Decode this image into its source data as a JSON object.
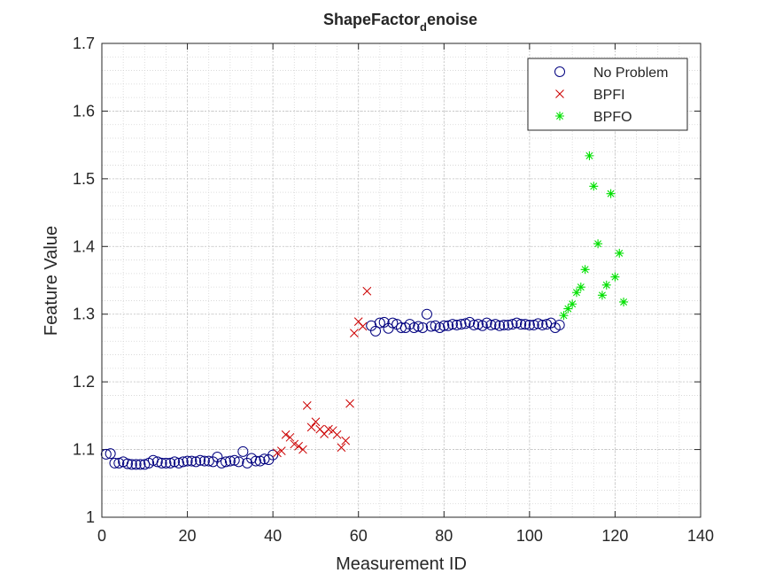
{
  "chart_data": {
    "type": "scatter",
    "title_main": "ShapeFactor",
    "title_sub": "d",
    "title_rest": "enoise",
    "xlabel": "Measurement ID",
    "ylabel": "Feature Value",
    "xlim": [
      0,
      140
    ],
    "ylim": [
      1,
      1.7
    ],
    "xticks": [
      0,
      20,
      40,
      60,
      80,
      100,
      120,
      140
    ],
    "yticks": [
      1,
      1.1,
      1.2,
      1.3,
      1.4,
      1.5,
      1.6,
      1.7
    ],
    "xtick_labels": [
      "0",
      "20",
      "40",
      "60",
      "80",
      "100",
      "120",
      "140"
    ],
    "ytick_labels": [
      "1",
      "1.1",
      "1.2",
      "1.3",
      "1.4",
      "1.5",
      "1.6",
      "1.7"
    ],
    "grid": true,
    "minor_grid": true,
    "legend_position": "top-right",
    "series": [
      {
        "name": "No Problem",
        "marker": "circle",
        "color": "#00007F",
        "x": [
          1,
          2,
          3,
          4,
          5,
          6,
          7,
          8,
          9,
          10,
          11,
          12,
          13,
          14,
          15,
          16,
          17,
          18,
          19,
          20,
          21,
          22,
          23,
          24,
          25,
          26,
          27,
          28,
          29,
          30,
          31,
          32,
          33,
          34,
          35,
          36,
          37,
          38,
          39,
          40,
          63,
          64,
          65,
          66,
          67,
          68,
          69,
          70,
          71,
          72,
          73,
          74,
          75,
          76,
          77,
          78,
          79,
          80,
          81,
          82,
          83,
          84,
          85,
          86,
          87,
          88,
          89,
          90,
          91,
          92,
          93,
          94,
          95,
          96,
          97,
          98,
          99,
          100,
          101,
          102,
          103,
          104,
          105,
          106,
          107
        ],
        "y": [
          1.093,
          1.094,
          1.08,
          1.08,
          1.082,
          1.079,
          1.078,
          1.078,
          1.078,
          1.078,
          1.08,
          1.084,
          1.082,
          1.08,
          1.08,
          1.08,
          1.082,
          1.08,
          1.082,
          1.083,
          1.083,
          1.082,
          1.084,
          1.083,
          1.083,
          1.082,
          1.089,
          1.08,
          1.082,
          1.083,
          1.084,
          1.082,
          1.097,
          1.08,
          1.087,
          1.083,
          1.083,
          1.086,
          1.085,
          1.092,
          1.283,
          1.275,
          1.287,
          1.288,
          1.279,
          1.287,
          1.285,
          1.28,
          1.28,
          1.285,
          1.28,
          1.282,
          1.28,
          1.3,
          1.282,
          1.283,
          1.28,
          1.283,
          1.283,
          1.285,
          1.284,
          1.285,
          1.286,
          1.288,
          1.284,
          1.285,
          1.283,
          1.287,
          1.284,
          1.285,
          1.283,
          1.284,
          1.284,
          1.285,
          1.287,
          1.285,
          1.285,
          1.284,
          1.284,
          1.286,
          1.284,
          1.285,
          1.287,
          1.28,
          1.284
        ]
      },
      {
        "name": "BPFI",
        "marker": "x",
        "color": "#CC0000",
        "x": [
          41,
          42,
          43,
          44,
          45,
          46,
          47,
          48,
          49,
          50,
          51,
          52,
          53,
          54,
          55,
          56,
          57,
          58,
          59,
          60,
          61,
          62
        ],
        "y": [
          1.095,
          1.098,
          1.122,
          1.118,
          1.108,
          1.105,
          1.1,
          1.165,
          1.133,
          1.141,
          1.13,
          1.123,
          1.13,
          1.128,
          1.122,
          1.103,
          1.113,
          1.168,
          1.272,
          1.289,
          1.282,
          1.334
        ]
      },
      {
        "name": "BPFO",
        "marker": "asterisk",
        "color": "#00E000",
        "x": [
          108,
          109,
          110,
          111,
          112,
          113,
          114,
          115,
          116,
          117,
          118,
          119,
          120,
          121,
          122
        ],
        "y": [
          1.298,
          1.308,
          1.315,
          1.332,
          1.34,
          1.366,
          1.534,
          1.489,
          1.404,
          1.328,
          1.343,
          1.478,
          1.355,
          1.39,
          1.318
        ]
      }
    ]
  }
}
